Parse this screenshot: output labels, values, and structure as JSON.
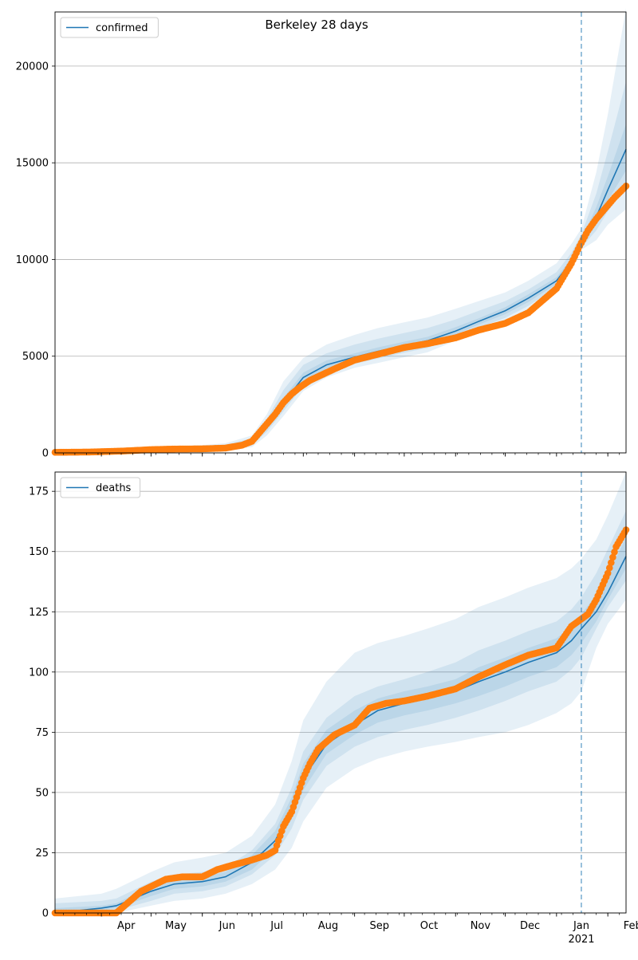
{
  "figure": {
    "title": "Berkeley 28 days"
  },
  "x_axis": {
    "month_labels": [
      "Apr",
      "May",
      "Jun",
      "Jul",
      "Aug",
      "Sep",
      "Oct",
      "Nov",
      "Dec",
      "Jan",
      "Feb"
    ],
    "year_label": "2021",
    "range": [
      "2020-03-04",
      "2021-02-12"
    ]
  },
  "colors": {
    "model_line": "#1f77b4",
    "band": "#1f77b4",
    "observed": "#ff7f0e",
    "grid": "#b0b0b0",
    "forecast_line": "#1f77b4"
  },
  "chart_data": [
    {
      "type": "line",
      "title": "Berkeley 28 days",
      "legend": "confirmed",
      "legend_position": "top-left",
      "ylim": [
        0,
        22800
      ],
      "yticks": [
        0,
        5000,
        10000,
        15000,
        20000
      ],
      "ytick_labels": [
        "0",
        "5000",
        "10000",
        "15000",
        "20000"
      ],
      "grid": "horizontal",
      "forecast_start": "2021-01-16",
      "model_median": {
        "name": "confirmed",
        "x": [
          "2020-03-04",
          "2020-04-01",
          "2020-05-01",
          "2020-06-01",
          "2020-06-15",
          "2020-07-01",
          "2020-07-10",
          "2020-07-20",
          "2020-08-01",
          "2020-08-15",
          "2020-09-01",
          "2020-09-15",
          "2020-10-01",
          "2020-10-15",
          "2020-11-01",
          "2020-11-15",
          "2020-12-01",
          "2020-12-15",
          "2021-01-01",
          "2021-01-10",
          "2021-01-16",
          "2021-01-25",
          "2021-02-01",
          "2021-02-12"
        ],
        "y": [
          50,
          60,
          150,
          230,
          300,
          550,
          1400,
          2600,
          3900,
          4550,
          4950,
          5250,
          5550,
          5800,
          6300,
          6800,
          7350,
          8000,
          8900,
          9900,
          10900,
          12200,
          13600,
          15700
        ]
      },
      "bands": [
        {
          "lower": [
            0,
            0,
            50,
            100,
            150,
            300,
            900,
            1900,
            3200,
            3900,
            4400,
            4650,
            4950,
            5200,
            5800,
            6300,
            6800,
            7400,
            8400,
            9500,
            10500,
            11000,
            11800,
            12600
          ],
          "upper": [
            150,
            200,
            300,
            400,
            500,
            900,
            2000,
            3700,
            4900,
            5600,
            6100,
            6450,
            6750,
            7000,
            7450,
            7850,
            8300,
            8900,
            9800,
            10800,
            11600,
            14500,
            17500,
            23000
          ]
        },
        {
          "lower": [
            20,
            30,
            80,
            150,
            200,
            380,
            1100,
            2150,
            3450,
            4150,
            4600,
            4880,
            5180,
            5420,
            5950,
            6480,
            6980,
            7600,
            8580,
            9620,
            10620,
            11500,
            12500,
            13700
          ],
          "upper": [
            100,
            120,
            230,
            320,
            420,
            750,
            1750,
            3250,
            4550,
            5150,
            5600,
            5900,
            6200,
            6450,
            6900,
            7350,
            7850,
            8450,
            9350,
            10350,
            11300,
            13400,
            15600,
            19200
          ]
        },
        {
          "lower": [
            35,
            45,
            115,
            190,
            255,
            465,
            1250,
            2380,
            3680,
            4350,
            4780,
            5070,
            5370,
            5620,
            6120,
            6640,
            7170,
            7800,
            8740,
            9760,
            10760,
            11850,
            13050,
            14600
          ],
          "upper": [
            70,
            80,
            190,
            275,
            360,
            650,
            1560,
            2850,
            4150,
            4780,
            5150,
            5450,
            5750,
            6000,
            6500,
            6960,
            7530,
            8200,
            9080,
            10060,
            11050,
            12700,
            14300,
            17000
          ]
        }
      ],
      "observed": {
        "x": [
          "2020-03-04",
          "2020-03-25",
          "2020-04-15",
          "2020-05-01",
          "2020-05-15",
          "2020-06-01",
          "2020-06-15",
          "2020-06-25",
          "2020-07-01",
          "2020-07-05",
          "2020-07-10",
          "2020-07-15",
          "2020-07-20",
          "2020-07-25",
          "2020-07-30",
          "2020-08-05",
          "2020-08-10",
          "2020-08-20",
          "2020-09-01",
          "2020-09-15",
          "2020-10-01",
          "2020-10-15",
          "2020-11-01",
          "2020-11-15",
          "2020-12-01",
          "2020-12-15",
          "2021-01-01",
          "2021-01-10",
          "2021-01-15",
          "2021-01-20",
          "2021-01-25",
          "2021-02-01",
          "2021-02-05",
          "2021-02-12"
        ],
        "y": [
          30,
          45,
          100,
          170,
          200,
          210,
          250,
          400,
          600,
          1000,
          1500,
          2000,
          2600,
          3050,
          3400,
          3750,
          3950,
          4350,
          4800,
          5100,
          5450,
          5650,
          5950,
          6350,
          6700,
          7250,
          8500,
          9800,
          10700,
          11500,
          12100,
          12800,
          13200,
          13800
        ]
      }
    },
    {
      "type": "line",
      "legend": "deaths",
      "legend_position": "top-left",
      "ylim": [
        0,
        183
      ],
      "yticks": [
        0,
        25,
        50,
        75,
        100,
        125,
        150,
        175
      ],
      "ytick_labels": [
        "0",
        "25",
        "50",
        "75",
        "100",
        "125",
        "150",
        "175"
      ],
      "grid": "horizontal",
      "forecast_start": "2021-01-16",
      "model_median": {
        "name": "deaths",
        "x": [
          "2020-03-04",
          "2020-04-01",
          "2020-04-10",
          "2020-05-01",
          "2020-05-15",
          "2020-06-01",
          "2020-06-15",
          "2020-07-01",
          "2020-07-15",
          "2020-07-25",
          "2020-08-01",
          "2020-08-15",
          "2020-09-01",
          "2020-09-15",
          "2020-10-01",
          "2020-10-15",
          "2020-11-01",
          "2020-11-15",
          "2020-12-01",
          "2020-12-15",
          "2021-01-01",
          "2021-01-10",
          "2021-01-16",
          "2021-01-25",
          "2021-02-01",
          "2021-02-12"
        ],
        "y": [
          0,
          2,
          3,
          9,
          12,
          13,
          15,
          21,
          30,
          43,
          56,
          70,
          78,
          84,
          87,
          89,
          92,
          96,
          100,
          104,
          108,
          113,
          118,
          125,
          133,
          148
        ]
      },
      "bands": [
        {
          "lower": [
            0,
            0,
            0,
            3,
            5,
            6,
            8,
            12,
            18,
            27,
            38,
            52,
            60,
            64,
            67,
            69,
            71,
            73,
            75,
            78,
            83,
            87,
            92,
            110,
            120,
            130
          ],
          "upper": [
            6,
            8,
            10,
            17,
            21,
            23,
            25,
            32,
            45,
            63,
            80,
            96,
            108,
            112,
            115,
            118,
            122,
            127,
            131,
            135,
            139,
            143,
            147,
            155,
            165,
            183
          ]
        },
        {
          "lower": [
            0,
            0,
            1,
            5,
            8,
            9,
            11,
            16,
            24,
            35,
            47,
            61,
            69,
            73,
            76,
            78,
            81,
            84,
            88,
            92,
            96,
            101,
            106,
            118,
            127,
            138
          ],
          "upper": [
            4,
            5,
            6,
            13,
            16,
            17,
            19,
            26,
            37,
            52,
            67,
            81,
            90,
            94,
            97,
            100,
            104,
            109,
            113,
            117,
            121,
            126,
            131,
            141,
            151,
            167
          ]
        },
        {
          "lower": [
            0,
            1,
            2,
            7,
            10,
            11,
            13,
            18,
            27,
            39,
            51,
            66,
            74,
            79,
            82,
            84,
            87,
            90,
            94,
            98,
            102,
            107,
            112,
            121,
            130,
            143
          ],
          "upper": [
            2,
            3,
            4,
            11,
            14,
            15,
            17,
            24,
            34,
            48,
            62,
            76,
            84,
            89,
            92,
            94,
            97,
            102,
            106,
            110,
            114,
            119,
            124,
            132,
            140,
            156
          ]
        }
      ],
      "observed": {
        "x": [
          "2020-03-04",
          "2020-04-10",
          "2020-04-15",
          "2020-04-20",
          "2020-04-25",
          "2020-05-01",
          "2020-05-10",
          "2020-05-20",
          "2020-06-01",
          "2020-06-10",
          "2020-06-20",
          "2020-07-01",
          "2020-07-10",
          "2020-07-15",
          "2020-07-20",
          "2020-07-25",
          "2020-08-01",
          "2020-08-05",
          "2020-08-10",
          "2020-08-20",
          "2020-09-01",
          "2020-09-10",
          "2020-09-20",
          "2020-10-01",
          "2020-10-15",
          "2020-11-01",
          "2020-11-15",
          "2020-12-01",
          "2020-12-15",
          "2021-01-01",
          "2021-01-10",
          "2021-01-20",
          "2021-01-25",
          "2021-02-01",
          "2021-02-06",
          "2021-02-12"
        ],
        "y": [
          0,
          0,
          3,
          6,
          9,
          11,
          14,
          15,
          15,
          18,
          20,
          22,
          24,
          26,
          36,
          42,
          56,
          62,
          68,
          74,
          78,
          85,
          87,
          88,
          90,
          93,
          98,
          103,
          107,
          110,
          119,
          124,
          130,
          141,
          152,
          159
        ]
      }
    }
  ]
}
